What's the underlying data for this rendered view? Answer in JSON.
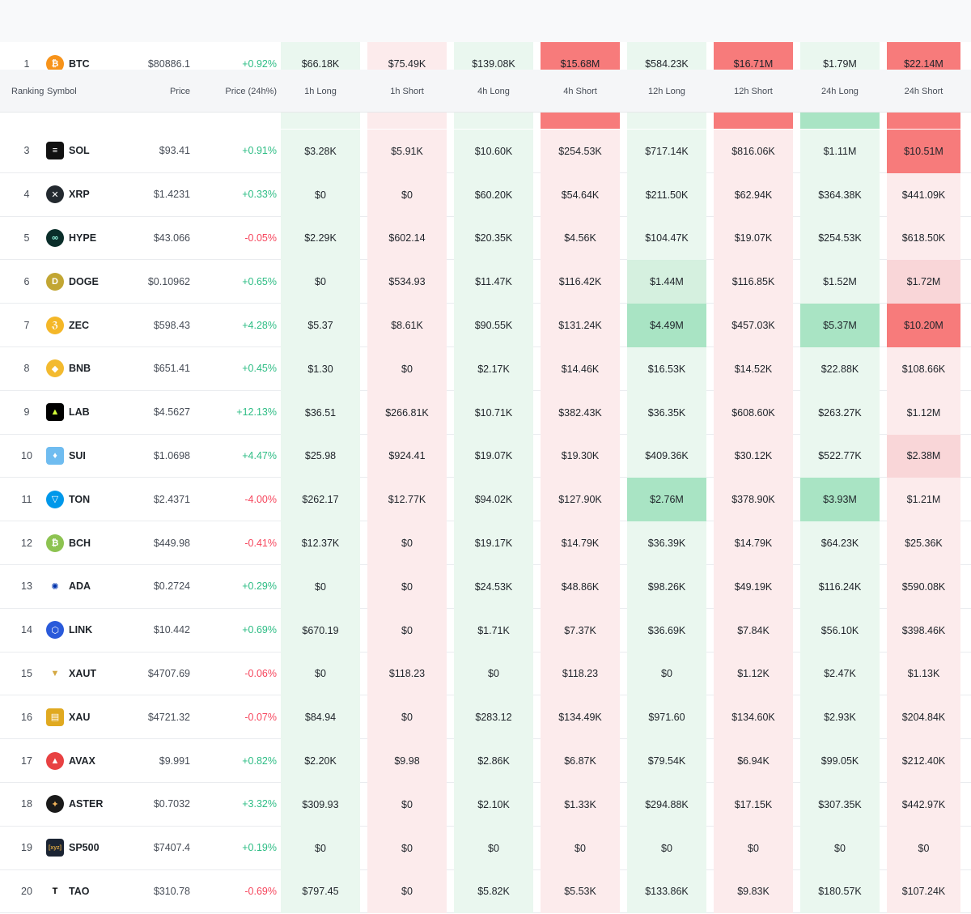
{
  "headers": {
    "ranking": "Ranking",
    "symbol": "Symbol",
    "price": "Price",
    "change": "Price (24h%)",
    "l1h": "1h Long",
    "s1h": "1h Short",
    "l4h": "4h Long",
    "s4h": "4h Short",
    "l12h": "12h Long",
    "s12h": "12h Short",
    "l24h": "24h Long",
    "s24h": "24h Short"
  },
  "rows": [
    {
      "rank": "1",
      "symbol": "BTC",
      "icon": "btc-icon",
      "price": "$80886.1",
      "change": "+0.92%",
      "values": [
        "$66.18K",
        "$75.49K",
        "$139.08K",
        "$15.68M",
        "$584.23K",
        "$16.71M",
        "$1.79M",
        "$22.14M"
      ]
    },
    {
      "rank": "3",
      "symbol": "SOL",
      "icon": "sol-icon",
      "price": "$93.41",
      "change": "+0.91%",
      "values": [
        "$3.28K",
        "$5.91K",
        "$10.60K",
        "$254.53K",
        "$717.14K",
        "$816.06K",
        "$1.11M",
        "$10.51M"
      ]
    },
    {
      "rank": "4",
      "symbol": "XRP",
      "icon": "xrp-icon",
      "price": "$1.4231",
      "change": "+0.33%",
      "values": [
        "$0",
        "$0",
        "$60.20K",
        "$54.64K",
        "$211.50K",
        "$62.94K",
        "$364.38K",
        "$441.09K"
      ]
    },
    {
      "rank": "5",
      "symbol": "HYPE",
      "icon": "hype-icon",
      "price": "$43.066",
      "change": "-0.05%",
      "values": [
        "$2.29K",
        "$602.14",
        "$20.35K",
        "$4.56K",
        "$104.47K",
        "$19.07K",
        "$254.53K",
        "$618.50K"
      ]
    },
    {
      "rank": "6",
      "symbol": "DOGE",
      "icon": "doge-icon",
      "price": "$0.10962",
      "change": "+0.65%",
      "values": [
        "$0",
        "$534.93",
        "$11.47K",
        "$116.42K",
        "$1.44M",
        "$116.85K",
        "$1.52M",
        "$1.72M"
      ]
    },
    {
      "rank": "7",
      "symbol": "ZEC",
      "icon": "zec-icon",
      "price": "$598.43",
      "change": "+4.28%",
      "values": [
        "$5.37",
        "$8.61K",
        "$90.55K",
        "$131.24K",
        "$4.49M",
        "$457.03K",
        "$5.37M",
        "$10.20M"
      ]
    },
    {
      "rank": "8",
      "symbol": "BNB",
      "icon": "bnb-icon",
      "price": "$651.41",
      "change": "+0.45%",
      "values": [
        "$1.30",
        "$0",
        "$2.17K",
        "$14.46K",
        "$16.53K",
        "$14.52K",
        "$22.88K",
        "$108.66K"
      ]
    },
    {
      "rank": "9",
      "symbol": "LAB",
      "icon": "lab-icon",
      "price": "$4.5627",
      "change": "+12.13%",
      "values": [
        "$36.51",
        "$266.81K",
        "$10.71K",
        "$382.43K",
        "$36.35K",
        "$608.60K",
        "$263.27K",
        "$1.12M"
      ]
    },
    {
      "rank": "10",
      "symbol": "SUI",
      "icon": "sui-icon",
      "price": "$1.0698",
      "change": "+4.47%",
      "values": [
        "$25.98",
        "$924.41",
        "$19.07K",
        "$19.30K",
        "$409.36K",
        "$30.12K",
        "$522.77K",
        "$2.38M"
      ]
    },
    {
      "rank": "11",
      "symbol": "TON",
      "icon": "ton-icon",
      "price": "$2.4371",
      "change": "-4.00%",
      "values": [
        "$262.17",
        "$12.77K",
        "$94.02K",
        "$127.90K",
        "$2.76M",
        "$378.90K",
        "$3.93M",
        "$1.21M"
      ]
    },
    {
      "rank": "12",
      "symbol": "BCH",
      "icon": "bch-icon",
      "price": "$449.98",
      "change": "-0.41%",
      "values": [
        "$12.37K",
        "$0",
        "$19.17K",
        "$14.79K",
        "$36.39K",
        "$14.79K",
        "$64.23K",
        "$25.36K"
      ]
    },
    {
      "rank": "13",
      "symbol": "ADA",
      "icon": "ada-icon",
      "price": "$0.2724",
      "change": "+0.29%",
      "values": [
        "$0",
        "$0",
        "$24.53K",
        "$48.86K",
        "$98.26K",
        "$49.19K",
        "$116.24K",
        "$590.08K"
      ]
    },
    {
      "rank": "14",
      "symbol": "LINK",
      "icon": "link-icon",
      "price": "$10.442",
      "change": "+0.69%",
      "values": [
        "$670.19",
        "$0",
        "$1.71K",
        "$7.37K",
        "$36.69K",
        "$7.84K",
        "$56.10K",
        "$398.46K"
      ]
    },
    {
      "rank": "15",
      "symbol": "XAUT",
      "icon": "xaut-icon",
      "price": "$4707.69",
      "change": "-0.06%",
      "values": [
        "$0",
        "$118.23",
        "$0",
        "$118.23",
        "$0",
        "$1.12K",
        "$2.47K",
        "$1.13K"
      ]
    },
    {
      "rank": "16",
      "symbol": "XAU",
      "icon": "xau-icon",
      "price": "$4721.32",
      "change": "-0.07%",
      "values": [
        "$84.94",
        "$0",
        "$283.12",
        "$134.49K",
        "$971.60",
        "$134.60K",
        "$2.93K",
        "$204.84K"
      ]
    },
    {
      "rank": "17",
      "symbol": "AVAX",
      "icon": "avax-icon",
      "price": "$9.991",
      "change": "+0.82%",
      "values": [
        "$2.20K",
        "$9.98",
        "$2.86K",
        "$6.87K",
        "$79.54K",
        "$6.94K",
        "$99.05K",
        "$212.40K"
      ]
    },
    {
      "rank": "18",
      "symbol": "ASTER",
      "icon": "aster-icon",
      "price": "$0.7032",
      "change": "+3.32%",
      "values": [
        "$309.93",
        "$0",
        "$2.10K",
        "$1.33K",
        "$294.88K",
        "$17.15K",
        "$307.35K",
        "$442.97K"
      ]
    },
    {
      "rank": "19",
      "symbol": "SP500",
      "icon": "sp500-icon",
      "icon_text": "[xyz]",
      "price": "$7407.4",
      "change": "+0.19%",
      "values": [
        "$0",
        "$0",
        "$0",
        "$0",
        "$0",
        "$0",
        "$0",
        "$0"
      ]
    },
    {
      "rank": "20",
      "symbol": "TAO",
      "icon": "tao-icon",
      "icon_text": "T",
      "price": "$310.78",
      "change": "-0.69%",
      "values": [
        "$797.45",
        "$0",
        "$5.82K",
        "$5.53K",
        "$133.86K",
        "$9.83K",
        "$180.57K",
        "$107.24K"
      ]
    }
  ],
  "colors": {
    "positive": "#2ebd85",
    "negative": "#f6465d",
    "long_light": "#eaf7ef",
    "long_mid": "#d5f0df",
    "long_strong": "#a9e4c4",
    "short_light": "#fcebec",
    "short_mid": "#f9d6d8",
    "short_strong": "#f77b7b"
  }
}
